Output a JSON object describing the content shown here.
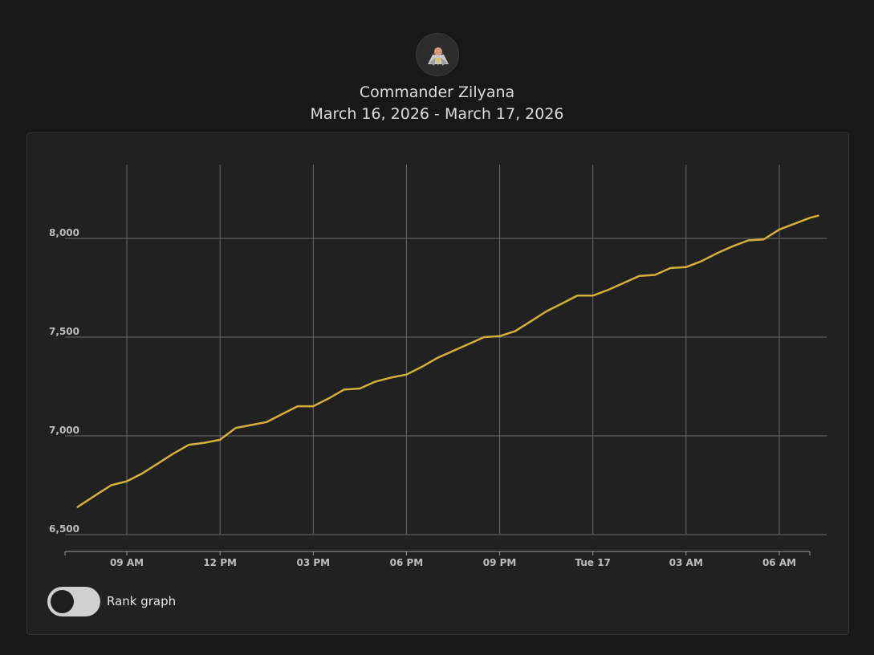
{
  "profile": {
    "name": "Commander Zilyana",
    "date_range": "March 16, 2026 - March 17, 2026",
    "avatar_icon": "commander-zilyana-avatar-icon"
  },
  "toggle": {
    "label": "Rank graph",
    "checked": false
  },
  "colors": {
    "line": "#d4b03a",
    "grid": "#6a6a6a",
    "background": "#212121"
  },
  "chart_data": {
    "type": "line",
    "title": "",
    "xlabel": "",
    "ylabel": "",
    "x_start": "2026-03-16T07:25",
    "x_end": "2026-03-17T07:30",
    "ylim": [
      6450,
      8370
    ],
    "yticks": [
      6500,
      7000,
      7500,
      8000
    ],
    "ytick_labels": [
      "6,500",
      "7,000",
      "7,500",
      "8,000"
    ],
    "xticks": [
      {
        "t": "2026-03-16T09:00",
        "label": "09 AM"
      },
      {
        "t": "2026-03-16T12:00",
        "label": "12 PM"
      },
      {
        "t": "2026-03-16T15:00",
        "label": "03 PM"
      },
      {
        "t": "2026-03-16T18:00",
        "label": "06 PM"
      },
      {
        "t": "2026-03-16T21:00",
        "label": "09 PM"
      },
      {
        "t": "2026-03-17T00:00",
        "label": "Tue 17"
      },
      {
        "t": "2026-03-17T03:00",
        "label": "03 AM"
      },
      {
        "t": "2026-03-17T06:00",
        "label": "06 AM"
      }
    ],
    "grid": true,
    "series": [
      {
        "x": [
          "2026-03-16T07:25",
          "2026-03-16T08:00",
          "2026-03-16T08:30",
          "2026-03-16T09:00",
          "2026-03-16T09:30",
          "2026-03-16T10:00",
          "2026-03-16T10:30",
          "2026-03-16T11:00",
          "2026-03-16T11:30",
          "2026-03-16T12:00",
          "2026-03-16T12:30",
          "2026-03-16T13:00",
          "2026-03-16T13:30",
          "2026-03-16T14:00",
          "2026-03-16T14:30",
          "2026-03-16T15:00",
          "2026-03-16T15:30",
          "2026-03-16T16:00",
          "2026-03-16T16:30",
          "2026-03-16T17:00",
          "2026-03-16T17:30",
          "2026-03-16T18:00",
          "2026-03-16T18:30",
          "2026-03-16T19:00",
          "2026-03-16T19:30",
          "2026-03-16T20:00",
          "2026-03-16T20:30",
          "2026-03-16T21:00",
          "2026-03-16T21:30",
          "2026-03-16T22:00",
          "2026-03-16T22:30",
          "2026-03-16T23:00",
          "2026-03-16T23:30",
          "2026-03-17T00:00",
          "2026-03-17T00:30",
          "2026-03-17T01:00",
          "2026-03-17T01:30",
          "2026-03-17T02:00",
          "2026-03-17T02:30",
          "2026-03-17T03:00",
          "2026-03-17T03:30",
          "2026-03-17T04:00",
          "2026-03-17T04:30",
          "2026-03-17T05:00",
          "2026-03-17T05:30",
          "2026-03-17T06:00",
          "2026-03-17T06:30",
          "2026-03-17T07:00",
          "2026-03-17T07:15"
        ],
        "values": [
          6640,
          6700,
          6750,
          6770,
          6810,
          6860,
          6910,
          6955,
          6965,
          6980,
          7040,
          7055,
          7070,
          7110,
          7150,
          7150,
          7190,
          7235,
          7240,
          7275,
          7295,
          7310,
          7350,
          7395,
          7430,
          7465,
          7500,
          7505,
          7530,
          7580,
          7630,
          7670,
          7710,
          7710,
          7740,
          7775,
          7810,
          7815,
          7850,
          7855,
          7885,
          7925,
          7960,
          7990,
          7995,
          8045,
          8075,
          8105,
          8115
        ]
      }
    ]
  }
}
